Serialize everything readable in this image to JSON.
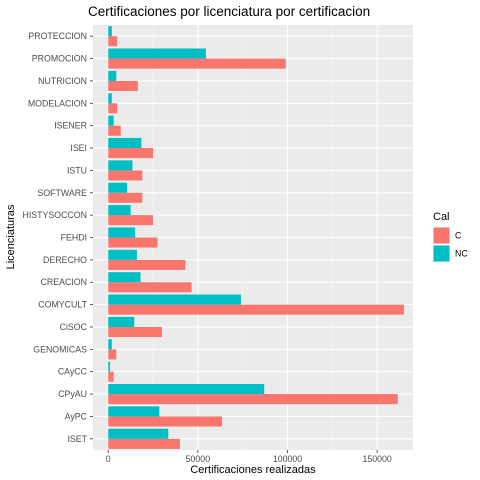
{
  "chart_data": {
    "type": "bar",
    "orientation": "horizontal",
    "title": "Certificaciones por licenciatura por certificacion",
    "xlabel": "Certificaciones realizadas",
    "ylabel": "Licenciaturas",
    "xlim": [
      -8500,
      170000
    ],
    "xticks": [
      0,
      50000,
      100000,
      150000
    ],
    "xtick_labels": [
      "0",
      "50000",
      "100000",
      "150000"
    ],
    "grid": true,
    "legend_position": "right",
    "legend_title": "Cal",
    "categories": [
      "PROTECCION",
      "PROMOCION",
      "NUTRICION",
      "MODELACION",
      "ISENER",
      "ISEI",
      "ISTU",
      "SOFTWARE",
      "HISTYSOCCON",
      "FEHDI",
      "DERECHO",
      "CREACION",
      "COMYCULT",
      "CiSOC",
      "GENOMICAS",
      "CAyCC",
      "CPyAU",
      "AyPC",
      "ISET"
    ],
    "series": [
      {
        "name": "C",
        "color": "#F8766D",
        "values": [
          5000,
          99000,
          16500,
          5000,
          7000,
          25000,
          19000,
          19000,
          25000,
          27500,
          43000,
          46500,
          165000,
          30000,
          4500,
          3000,
          161500,
          63500,
          40000
        ]
      },
      {
        "name": "NC",
        "color": "#00BFC4",
        "values": [
          2000,
          54500,
          4500,
          2000,
          3000,
          18500,
          13500,
          10500,
          12500,
          15000,
          16000,
          18000,
          74000,
          14500,
          2000,
          1000,
          87000,
          28500,
          33500
        ]
      }
    ]
  }
}
